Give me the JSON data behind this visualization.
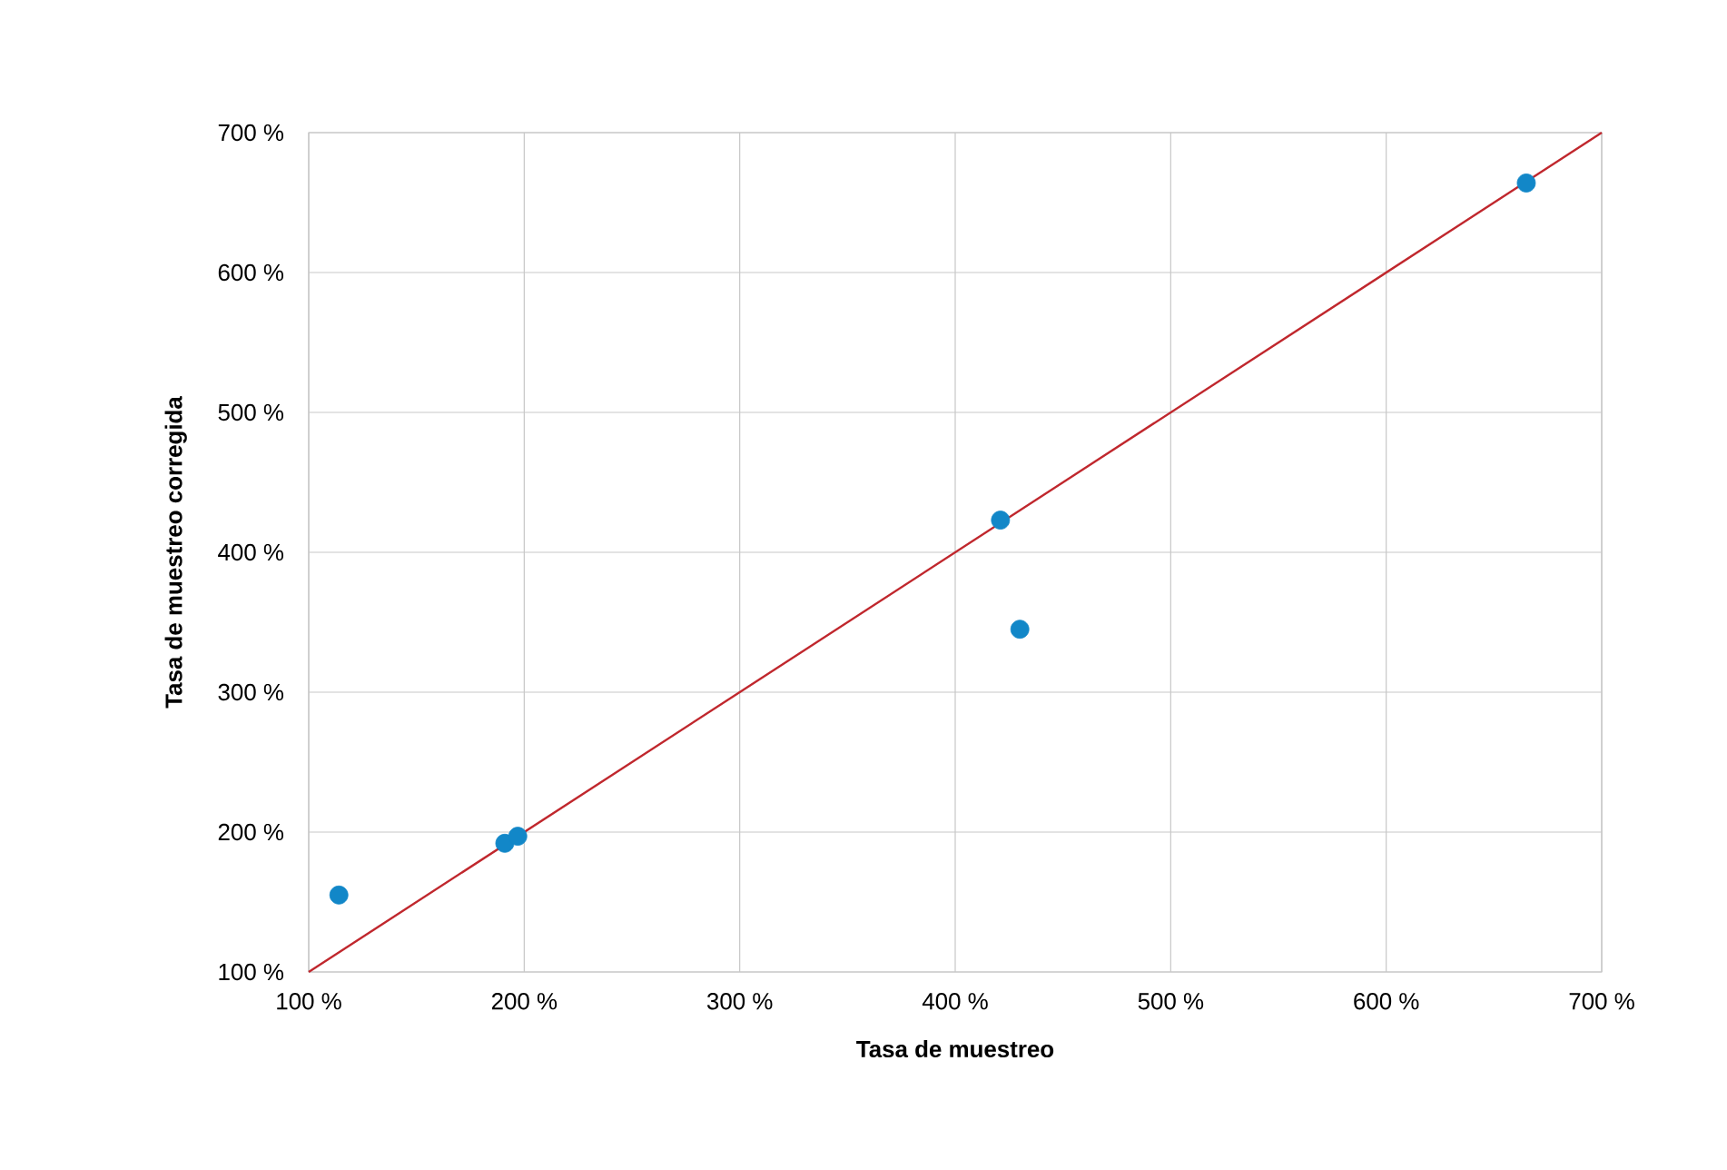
{
  "chart_data": {
    "type": "scatter",
    "xlabel": "Tasa de muestreo",
    "ylabel": "Tasa de muestreo corregida",
    "xlim": [
      100,
      700
    ],
    "ylim": [
      100,
      700
    ],
    "xticks": [
      {
        "value": 100,
        "label": "100 %"
      },
      {
        "value": 200,
        "label": "200 %"
      },
      {
        "value": 300,
        "label": "300 %"
      },
      {
        "value": 400,
        "label": "400 %"
      },
      {
        "value": 500,
        "label": "500 %"
      },
      {
        "value": 600,
        "label": "600 %"
      },
      {
        "value": 700,
        "label": "700 %"
      }
    ],
    "yticks": [
      {
        "value": 100,
        "label": "100 %"
      },
      {
        "value": 200,
        "label": "200 %"
      },
      {
        "value": 300,
        "label": "300 %"
      },
      {
        "value": 400,
        "label": "400 %"
      },
      {
        "value": 500,
        "label": "500 %"
      },
      {
        "value": 600,
        "label": "600 %"
      },
      {
        "value": 700,
        "label": "700 %"
      }
    ],
    "grid": true,
    "series": [
      {
        "type": "line",
        "color": "#c0272d",
        "x": [
          100,
          700
        ],
        "values": [
          100,
          700
        ]
      },
      {
        "marker": "circle",
        "color": "#1287c8",
        "x": [
          114,
          191,
          197,
          421,
          430,
          665
        ],
        "values": [
          155,
          192,
          197,
          423,
          345,
          664
        ]
      }
    ]
  }
}
